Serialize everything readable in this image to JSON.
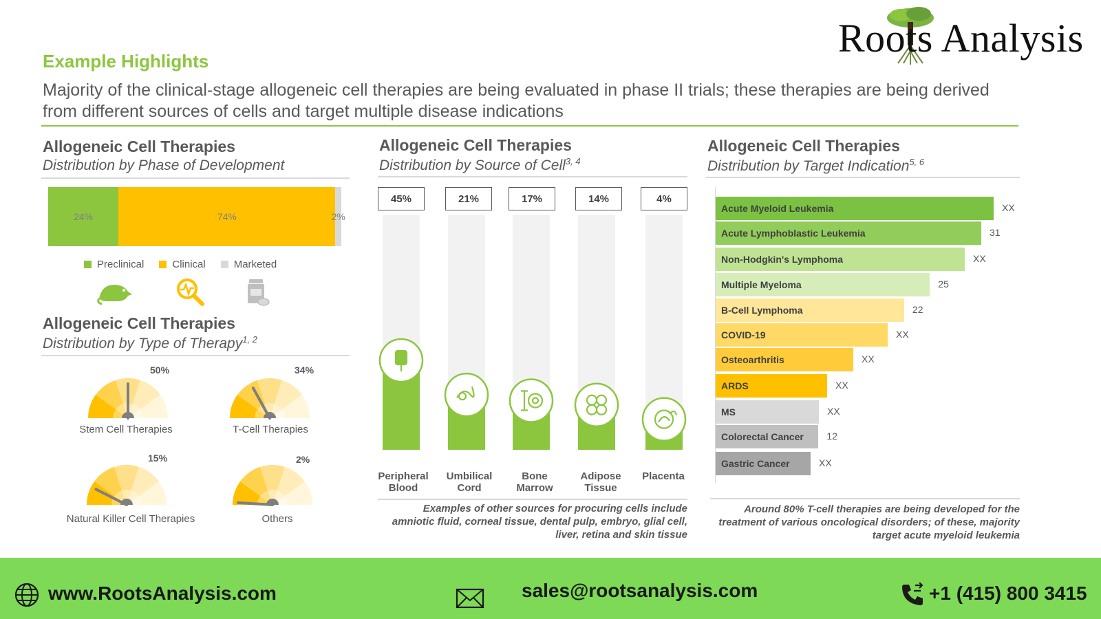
{
  "brand": {
    "name": "Roots Analysis",
    "tree_icon": "tree-icon"
  },
  "header": {
    "label": "Example Highlights",
    "headline": "Majority of the clinical-stage allogeneic cell therapies are being evaluated in phase II trials; these therapies are being derived from different sources of cells and target multiple disease indications"
  },
  "colors": {
    "green": "#8cc63f",
    "yellow": "#ffc000",
    "grey": "#bfbfbf",
    "footer": "#7ed957"
  },
  "chart_data": [
    {
      "type": "bar",
      "orientation": "stacked-horizontal",
      "title": "Allogeneic Cell Therapies",
      "subtitle": "Distribution by Phase of Development",
      "categories": [
        "Preclinical",
        "Clinical",
        "Marketed"
      ],
      "values": [
        24,
        74,
        2
      ],
      "labels": [
        "24%",
        "74%",
        "2%"
      ],
      "legend": [
        "Preclinical",
        "Clinical",
        "Marketed"
      ],
      "legend_placement": "bottom",
      "icons": [
        "rat-icon",
        "magnifier-pulse-icon",
        "pill-bottle-icon"
      ]
    },
    {
      "type": "gauge",
      "title": "Allogeneic Cell Therapies",
      "subtitle": "Distribution by Type of Therapy",
      "subtitle_refs": "1, 2",
      "categories": [
        "Stem Cell Therapies",
        "T-Cell Therapies",
        "Natural Killer Cell Therapies",
        "Others"
      ],
      "values": [
        50,
        34,
        15,
        2
      ],
      "labels": [
        "50%",
        "34%",
        "15%",
        "2%"
      ]
    },
    {
      "type": "bar",
      "orientation": "vertical",
      "title": "Allogeneic Cell Therapies",
      "subtitle": "Distribution by Source of Cell",
      "subtitle_refs": "3, 4",
      "categories": [
        "Peripheral Blood",
        "Umbilical Cord",
        "Bone Marrow",
        "Adipose Tissue",
        "Placenta"
      ],
      "values": [
        45,
        21,
        17,
        14,
        4
      ],
      "labels": [
        "45%",
        "21%",
        "17%",
        "14%",
        "4%"
      ],
      "icons": [
        "blood-bag-icon",
        "umbilical-cord-icon",
        "bone-marrow-icon",
        "adipose-cells-icon",
        "placenta-icon"
      ],
      "note": "Examples of other sources for procuring cells include amniotic fluid, corneal tissue, dental pulp, embryo, glial cell, liver, retina and skin tissue"
    },
    {
      "type": "bar",
      "orientation": "horizontal",
      "title": "Allogeneic Cell Therapies",
      "subtitle": "Distribution by Target Indication",
      "subtitle_refs": "5, 6",
      "categories": [
        "Acute Myeloid Leukemia",
        "Acute Lymphoblastic Leukemia",
        "Non-Hodgkin's Lymphoma",
        "Multiple Myeloma",
        "B-Cell Lymphoma",
        "COVID-19",
        "Osteoarthritis",
        "ARDS",
        "MS",
        "Colorectal Cancer",
        "Gastric Cancer"
      ],
      "values": [
        null,
        31,
        null,
        25,
        22,
        null,
        null,
        null,
        null,
        12,
        null
      ],
      "labels": [
        "XX",
        "31",
        "XX",
        "25",
        "22",
        "XX",
        "XX",
        "XX",
        "XX",
        "12",
        "XX"
      ],
      "bar_colors": [
        "#7cc242",
        "#92cc5a",
        "#bfe393",
        "#d6edb9",
        "#ffe699",
        "#ffd966",
        "#ffcb3a",
        "#ffc000",
        "#d9d9d9",
        "#bfbfbf",
        "#a6a6a6"
      ],
      "note": "Around 80% T-cell therapies are being developed for the treatment of various oncological disorders; of these, majority target acute myeloid leukemia"
    }
  ],
  "footer": {
    "website": "www.RootsAnalysis.com",
    "email": "sales@rootsanalysis.com",
    "phone": "+1 (415) 800 3415",
    "icons": [
      "globe-icon",
      "envelope-icon",
      "phone-icon"
    ]
  }
}
